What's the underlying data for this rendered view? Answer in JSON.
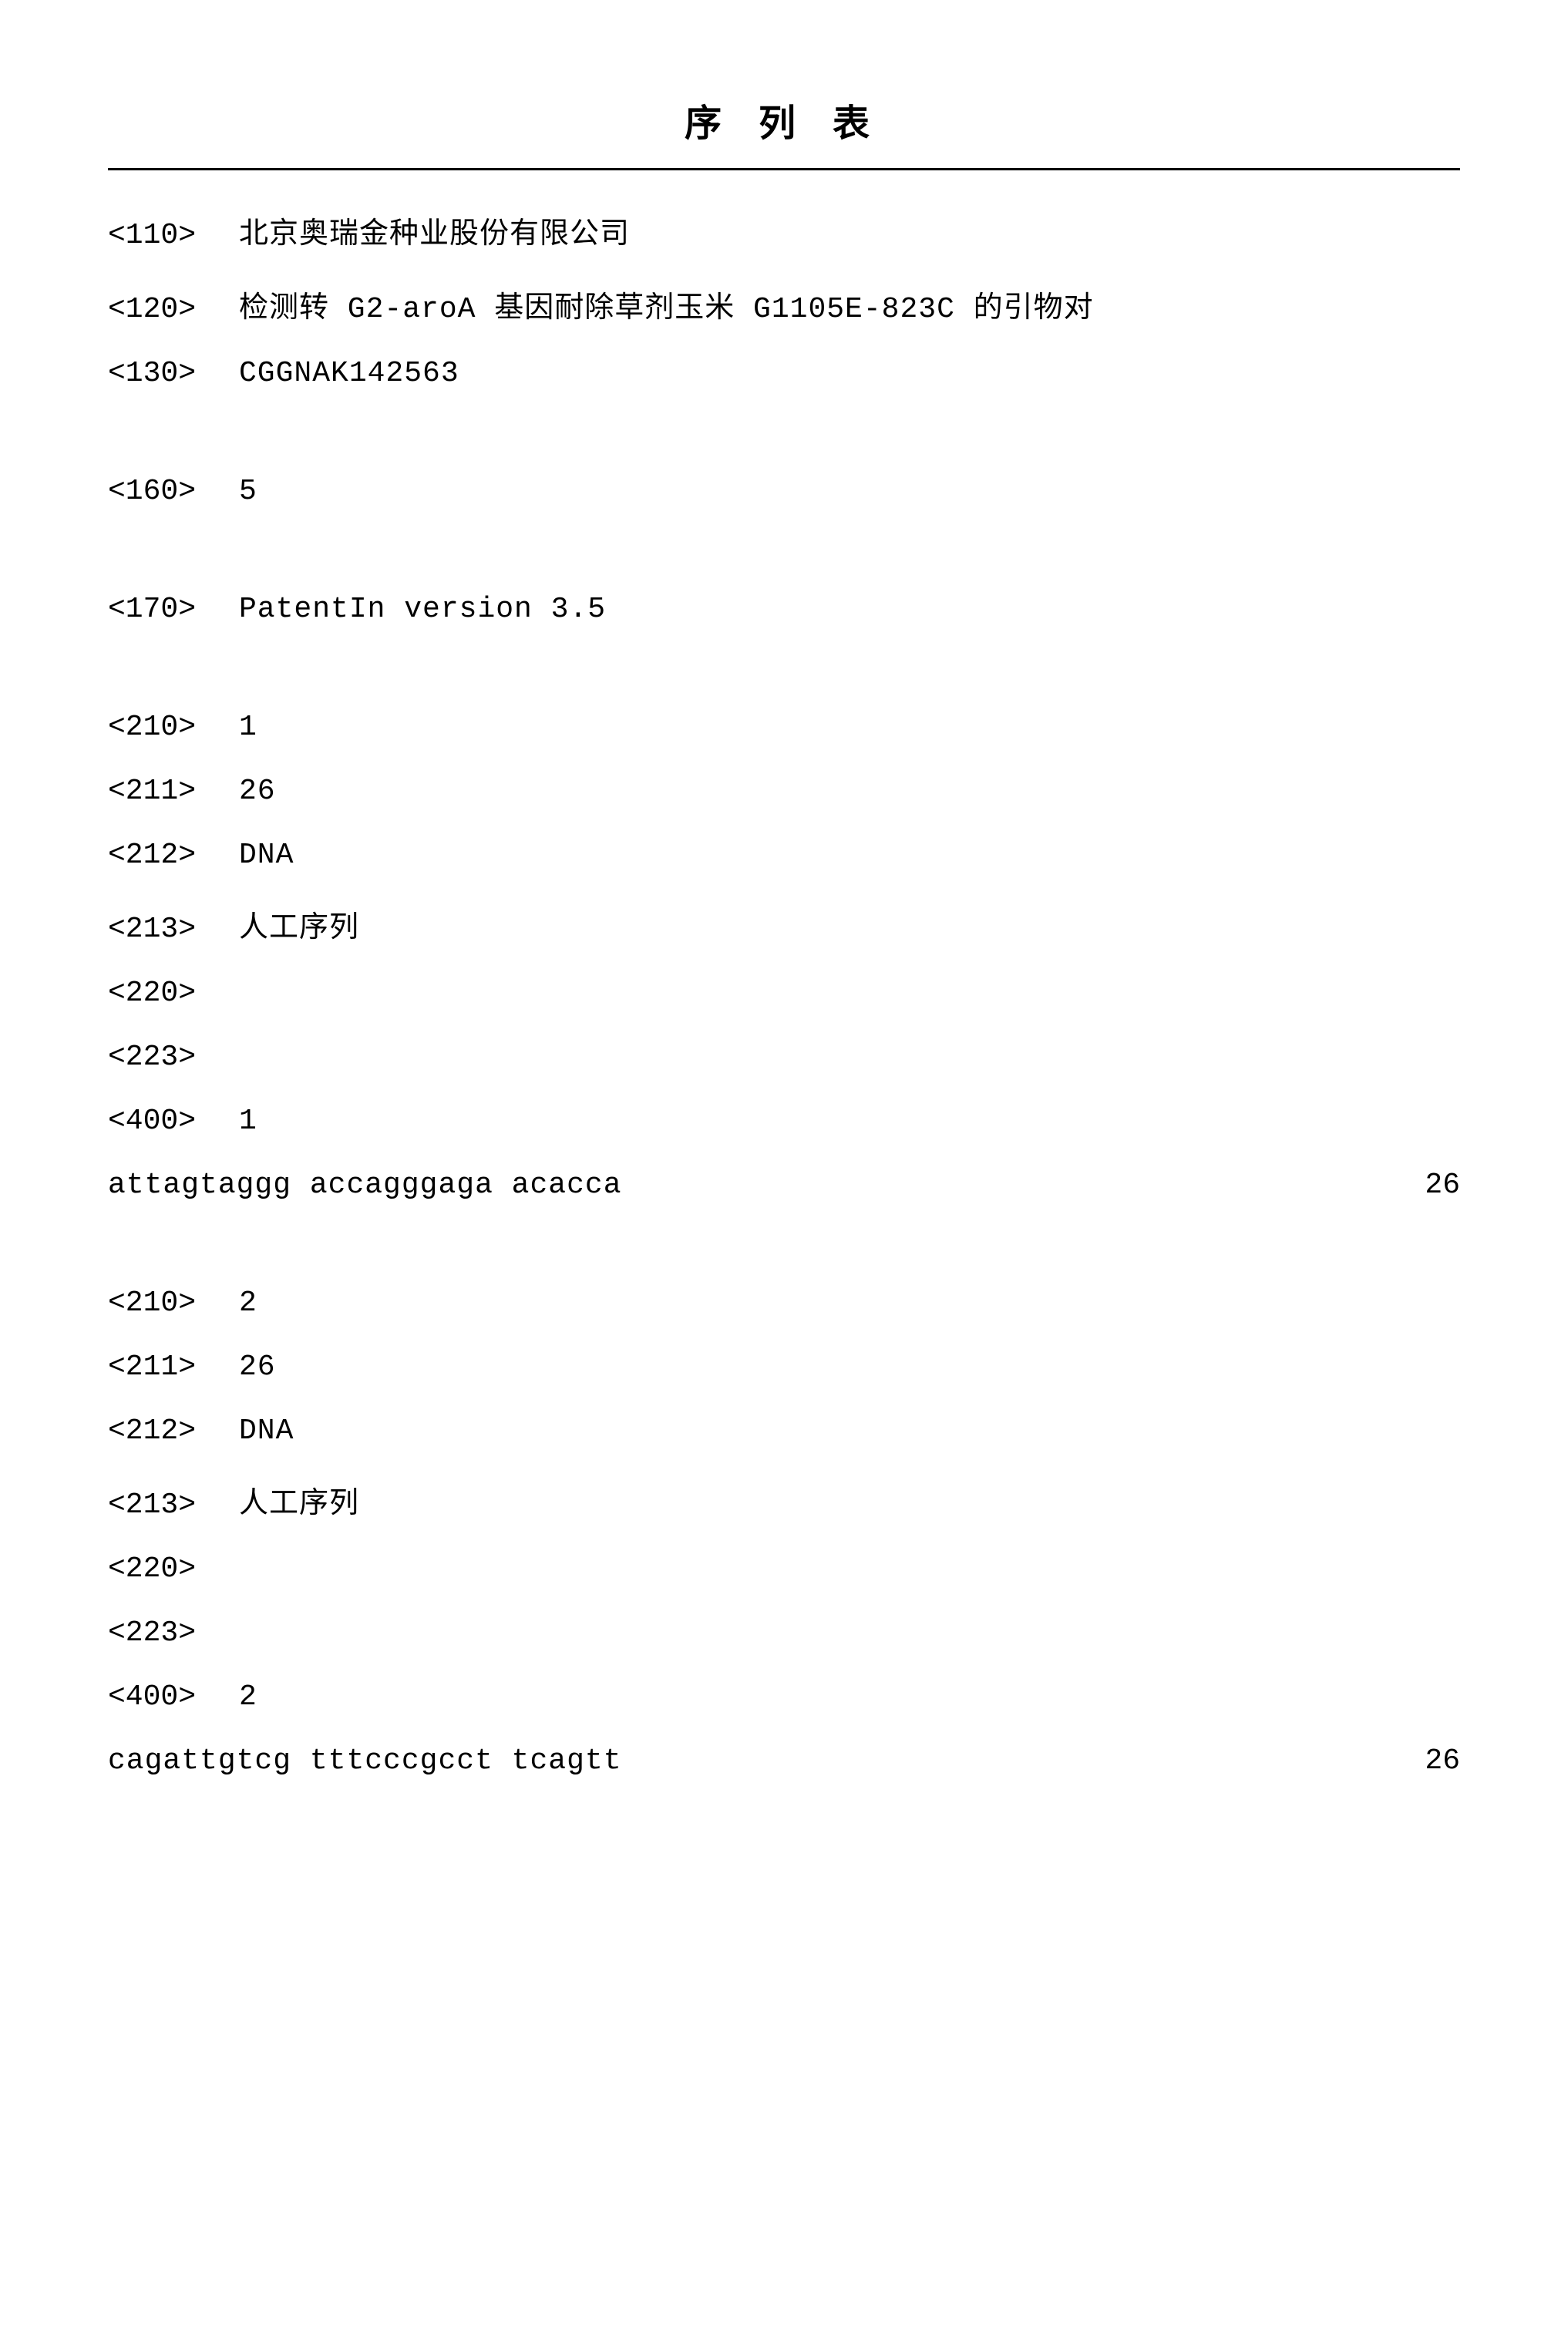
{
  "title": "序 列 表",
  "header_entries": [
    {
      "tag": "<110>",
      "val": "北京奥瑞金种业股份有限公司",
      "mono": false,
      "gap": false
    },
    {
      "tag": "<120>",
      "val": "检测转 G2-aroA 基因耐除草剂玉米 G1105E-823C 的引物对",
      "mono": false,
      "gap": false
    },
    {
      "tag": "<130>",
      "val": "CGGNAK142563",
      "mono": true,
      "gap": true
    },
    {
      "tag": "<160>",
      "val": "5",
      "mono": true,
      "gap": true
    },
    {
      "tag": "<170>",
      "val": "PatentIn version 3.5",
      "mono": true,
      "gap": true
    }
  ],
  "sequences": [
    {
      "entries": [
        {
          "tag": "<210>",
          "val": "1",
          "mono": true
        },
        {
          "tag": "<211>",
          "val": "26",
          "mono": true
        },
        {
          "tag": "<212>",
          "val": "DNA",
          "mono": true
        },
        {
          "tag": "<213>",
          "val": "人工序列",
          "mono": false
        },
        {
          "tag": "<220>",
          "val": "",
          "mono": true
        },
        {
          "tag": "<223>",
          "val": "",
          "mono": true
        },
        {
          "tag": "<400>",
          "val": "1",
          "mono": true
        }
      ],
      "seq_text": "attagtaggg accagggaga acacca",
      "seq_len": "26"
    },
    {
      "entries": [
        {
          "tag": "<210>",
          "val": "2",
          "mono": true
        },
        {
          "tag": "<211>",
          "val": "26",
          "mono": true
        },
        {
          "tag": "<212>",
          "val": "DNA",
          "mono": true
        },
        {
          "tag": "<213>",
          "val": "人工序列",
          "mono": false
        },
        {
          "tag": "<220>",
          "val": "",
          "mono": true
        },
        {
          "tag": "<223>",
          "val": "",
          "mono": true
        },
        {
          "tag": "<400>",
          "val": "2",
          "mono": true
        }
      ],
      "seq_text": "cagattgtcg tttcccgcct tcagtt",
      "seq_len": "26"
    }
  ]
}
